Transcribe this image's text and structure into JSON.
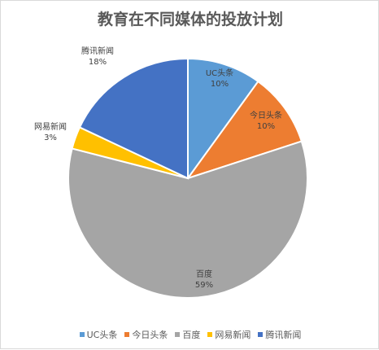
{
  "chart_data": {
    "type": "pie",
    "title": "教育在不同媒体的投放计划",
    "slices": [
      {
        "name": "UC头条",
        "value": 10,
        "label": "10%",
        "color": "#5b9bd5"
      },
      {
        "name": "今日头条",
        "value": 10,
        "label": "10%",
        "color": "#ed7d31"
      },
      {
        "name": "百度",
        "value": 59,
        "label": "59%",
        "color": "#a5a5a5"
      },
      {
        "name": "网易新闻",
        "value": 3,
        "label": "3%",
        "color": "#ffc000"
      },
      {
        "name": "腾讯新闻",
        "value": 18,
        "label": "18%",
        "color": "#4472c4"
      }
    ],
    "legend_position": "bottom",
    "start_angle": "12 o'clock, clockwise"
  }
}
